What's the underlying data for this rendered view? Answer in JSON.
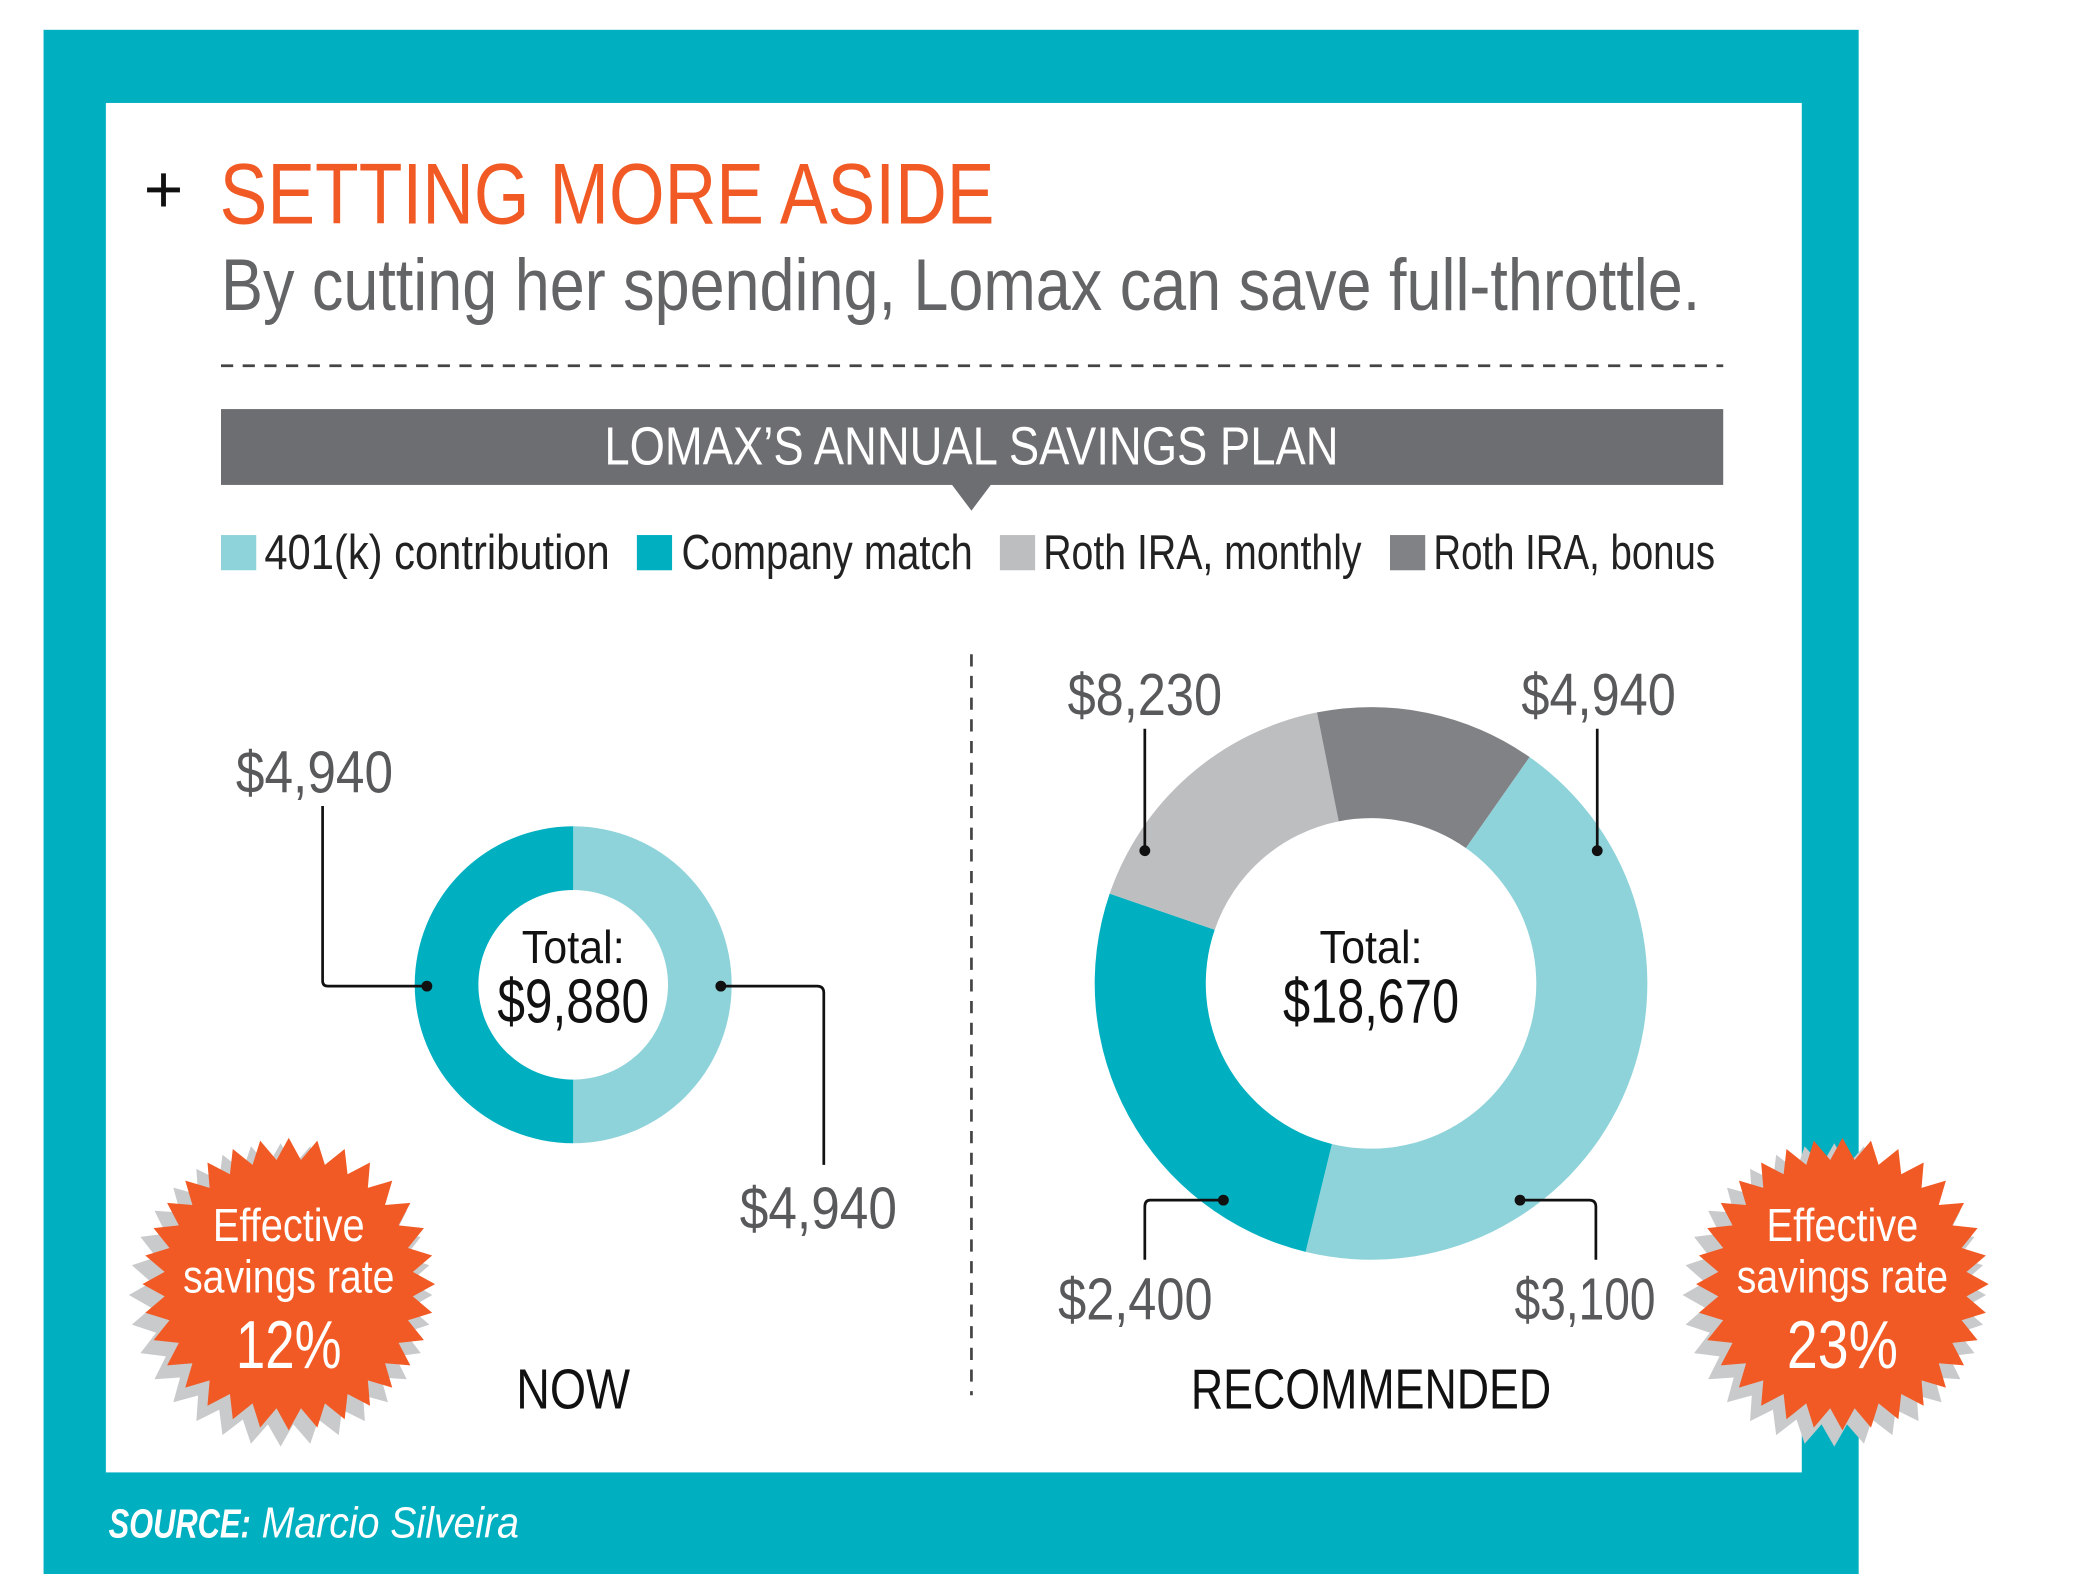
{
  "header": {
    "plus": "+",
    "title": "SETTING MORE ASIDE",
    "subtitle": "By cutting her spending, Lomax can save full-throttle."
  },
  "banner": "LOMAX’S ANNUAL SAVINGS PLAN",
  "legend": [
    {
      "label": "401(k) contribution",
      "color": "#8ed3da"
    },
    {
      "label": "Company match",
      "color": "#00b0c0"
    },
    {
      "label": "Roth IRA, monthly",
      "color": "#bcbec0"
    },
    {
      "label": "Roth IRA, bonus",
      "color": "#808285"
    }
  ],
  "colors": {
    "frame": "#00b0c0",
    "accent": "#f15a24",
    "banner": "#6d6e71"
  },
  "chart_data": [
    {
      "type": "pie",
      "title": "NOW",
      "center_label": "Total:",
      "total": "$9,880",
      "categories": [
        "401(k) contribution",
        "Company match"
      ],
      "values": [
        4940,
        4940
      ],
      "data_labels": [
        "$4,940",
        "$4,940"
      ],
      "badge": {
        "line1": "Effective",
        "line2": "savings rate",
        "value": "12%"
      }
    },
    {
      "type": "pie",
      "title": "RECOMMENDED",
      "center_label": "Total:",
      "total": "$18,670",
      "categories": [
        "401(k) contribution",
        "Company match",
        "Roth IRA, monthly",
        "Roth IRA, bonus"
      ],
      "values": [
        8230,
        4940,
        3100,
        2400
      ],
      "data_labels": [
        "$8,230",
        "$4,940",
        "$3,100",
        "$2,400"
      ],
      "badge": {
        "line1": "Effective",
        "line2": "savings rate",
        "value": "23%"
      }
    }
  ],
  "source": {
    "label": "SOURCE:",
    "name": "Marcio Silveira"
  }
}
